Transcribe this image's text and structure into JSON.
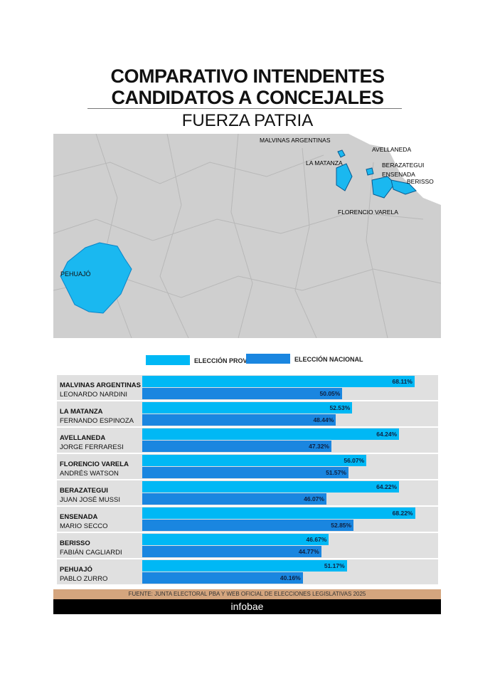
{
  "title": [
    "COMPARATIVO INTENDENTES",
    "CANDIDATOS A CONCEJALES"
  ],
  "subtitle": "FUERZA PATRIA",
  "map_labels": [
    "MALVINAS ARGENTINAS",
    "AVELLANEDA",
    "LA MATANZA",
    "BERAZATEGUI",
    "ENSENADA",
    "BERISSO",
    "FLORENCIO VARELA",
    "PEHUAJÓ"
  ],
  "colors": {
    "provincial": "#00b8f5",
    "nacional": "#1a86e0",
    "map_bg": "#cfcfcf",
    "highlight": "#1ab8f0"
  },
  "chart_data": {
    "type": "bar",
    "orientation": "horizontal",
    "xlim": [
      0,
      74
    ],
    "legend": "top",
    "series": [
      {
        "name": "ELECCIÓN PROVINCIAL",
        "values": [
          68.11,
          52.53,
          64.24,
          56.07,
          64.22,
          68.22,
          46.67,
          51.17
        ]
      },
      {
        "name": "ELECCIÓN NACIONAL",
        "values": [
          50.05,
          48.44,
          47.32,
          51.57,
          46.07,
          52.85,
          44.77,
          40.16
        ]
      }
    ],
    "categories": [
      "MALVINAS ARGENTINAS",
      "LA MATANZA",
      "AVELLANEDA",
      "FLORENCIO VARELA",
      "BERAZATEGUI",
      "ENSENADA",
      "BERISSO",
      "PEHUAJÓ"
    ],
    "candidates": [
      "LEONARDO NARDINI",
      "FERNANDO ESPINOZA",
      "JORGE FERRARESI",
      "ANDRÉS WATSON",
      "JUAN JOSÉ MUSSI",
      "MARIO SECCO",
      "FABIÁN CAGLIARDI",
      "PABLO ZURRO"
    ]
  },
  "source": "FUENTE: JUNTA ELECTORAL PBA Y WEB OFICIAL DE ELECCIONES LEGISLATIVAS 2025",
  "brand": "infobae"
}
